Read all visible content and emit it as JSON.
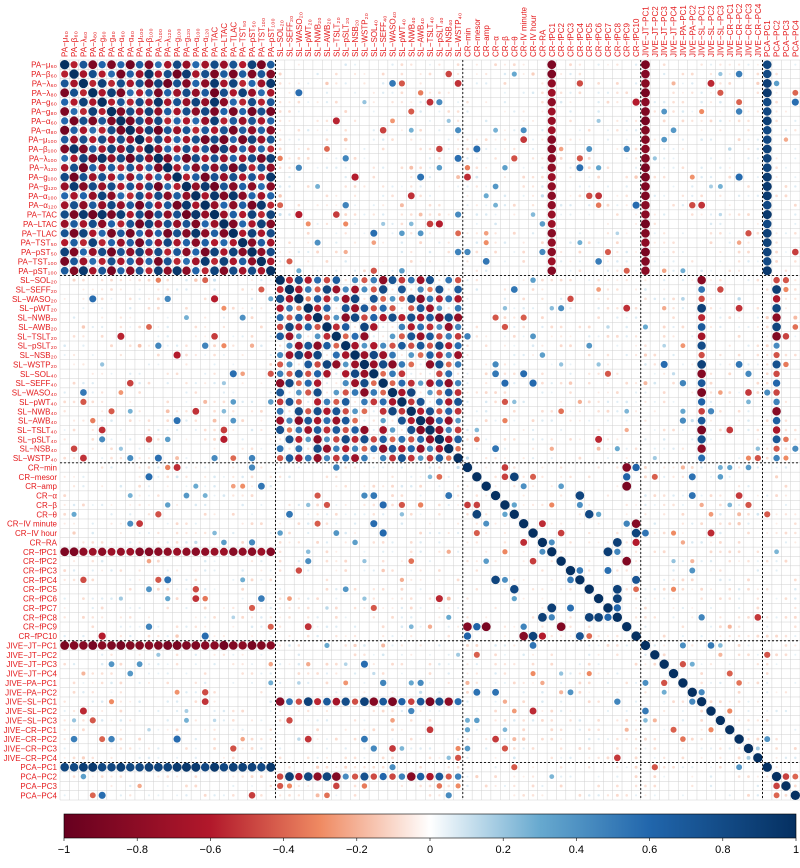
{
  "chart_data": {
    "type": "heatmap",
    "title": "",
    "variables": [
      "PA−μ₆₀",
      "PA−β₆₀",
      "PA−λ₆₀",
      "PA−λ₈₀",
      "PA−g₆₀",
      "PA−g₈₀",
      "PA−α₆₀",
      "PA−α₈₀",
      "PA−μ₁₀₀",
      "PA−β₁₀₀",
      "PA−λ₁₀₀",
      "PA−λ₁₂₀",
      "PA−g₁₀₀",
      "PA−g₁₂₀",
      "PA−α₁₀₀",
      "PA−α₁₂₀",
      "PA−TAC",
      "PA−LTAC",
      "PA−TLAC",
      "PA−TST₅₀",
      "PA−pST₅₀",
      "PA−TST₁₀₀",
      "PA−pST₁₀₀",
      "SL−SOL₂₀",
      "SL−SEFF₂₀",
      "SL−WASO₂₀",
      "SL−pWT₂₀",
      "SL−NWB₂₀",
      "SL−AWB₂₀",
      "SL−TSLT₂₀",
      "SL−pSLT₂₀",
      "SL−NSB₂₀",
      "SL−WSTP₂₀",
      "SL−SOL₄₀",
      "SL−SEFF₄₀",
      "SL−WASO₄₀",
      "SL−pWT₄₀",
      "SL−NWB₄₀",
      "SL−AWB₄₀",
      "SL−TSLT₄₀",
      "SL−pSLT₄₀",
      "SL−NSB₄₀",
      "SL−WSTP₄₀",
      "CR−min",
      "CR−mesor",
      "CR−amp",
      "CR−α",
      "CR−β",
      "CR−θ",
      "CR−IV minute",
      "CR−IV hour",
      "CR−RA",
      "CR−fPC1",
      "CR−fPC2",
      "CR−fPC3",
      "CR−fPC4",
      "CR−fPC5",
      "CR−fPC6",
      "CR−fPC7",
      "CR−fPC8",
      "CR−fPC9",
      "CR−fPC10",
      "JIVE−JT−PC1",
      "JIVE−JT−PC2",
      "JIVE−JT−PC3",
      "JIVE−JT−PC4",
      "JIVE−PA−PC1",
      "JIVE−PA−PC2",
      "JIVE−SL−PC1",
      "JIVE−SL−PC2",
      "JIVE−SL−PC3",
      "JIVE−CR−PC1",
      "JIVE−CR−PC2",
      "JIVE−CR−PC3",
      "JIVE−CR−PC4",
      "PCA−PC1",
      "PCA−PC2",
      "PCA−PC3",
      "PCA−PC4"
    ],
    "groups": [
      {
        "name": "PA",
        "size": 23
      },
      {
        "name": "SL",
        "size": 20
      },
      {
        "name": "CR",
        "size": 19
      },
      {
        "name": "JIVE",
        "size": 13
      },
      {
        "name": "PCA",
        "size": 4
      }
    ],
    "color_range": [
      -1,
      1
    ],
    "colorbar_ticks": [
      "−1",
      "−0.8",
      "−0.6",
      "−0.4",
      "−0.2",
      "0",
      "0.2",
      "0.4",
      "0.6",
      "0.8",
      "1"
    ],
    "colorbar_tick_values": [
      -1,
      -0.8,
      -0.6,
      -0.4,
      -0.2,
      0,
      0.2,
      0.4,
      0.6,
      0.8,
      1
    ],
    "colors": {
      "negative": "#67001f",
      "mid": "#ffffff",
      "positive": "#053061"
    },
    "label_color": "#e41a1c",
    "grid": true,
    "diagonal_value": 1,
    "blocks": [
      {
        "rows": "PA",
        "cols": "PA",
        "pattern": "alternating",
        "strength": 0.9
      },
      {
        "rows": "SL",
        "cols": "SL",
        "pattern": "alternating",
        "strength": 0.8
      },
      {
        "rows": "PA",
        "cols": "JIVE−JT−PC1",
        "pattern": "uniform",
        "value": -0.85
      },
      {
        "rows": "PA",
        "cols": "PCA−PC1",
        "pattern": "uniform",
        "value": 0.85
      },
      {
        "rows": "PA",
        "cols": "CR−fPC1",
        "pattern": "uniform",
        "value": -0.8
      },
      {
        "rows": "SL",
        "cols": "JIVE−SL−PC1",
        "pattern": "alternating",
        "strength": 0.7
      },
      {
        "rows": "SL",
        "cols": "PCA−PC2",
        "pattern": "alternating",
        "strength": 0.6
      },
      {
        "rows": "CR",
        "cols": "CR",
        "pattern": "sparse",
        "strength": 0.7
      }
    ]
  }
}
